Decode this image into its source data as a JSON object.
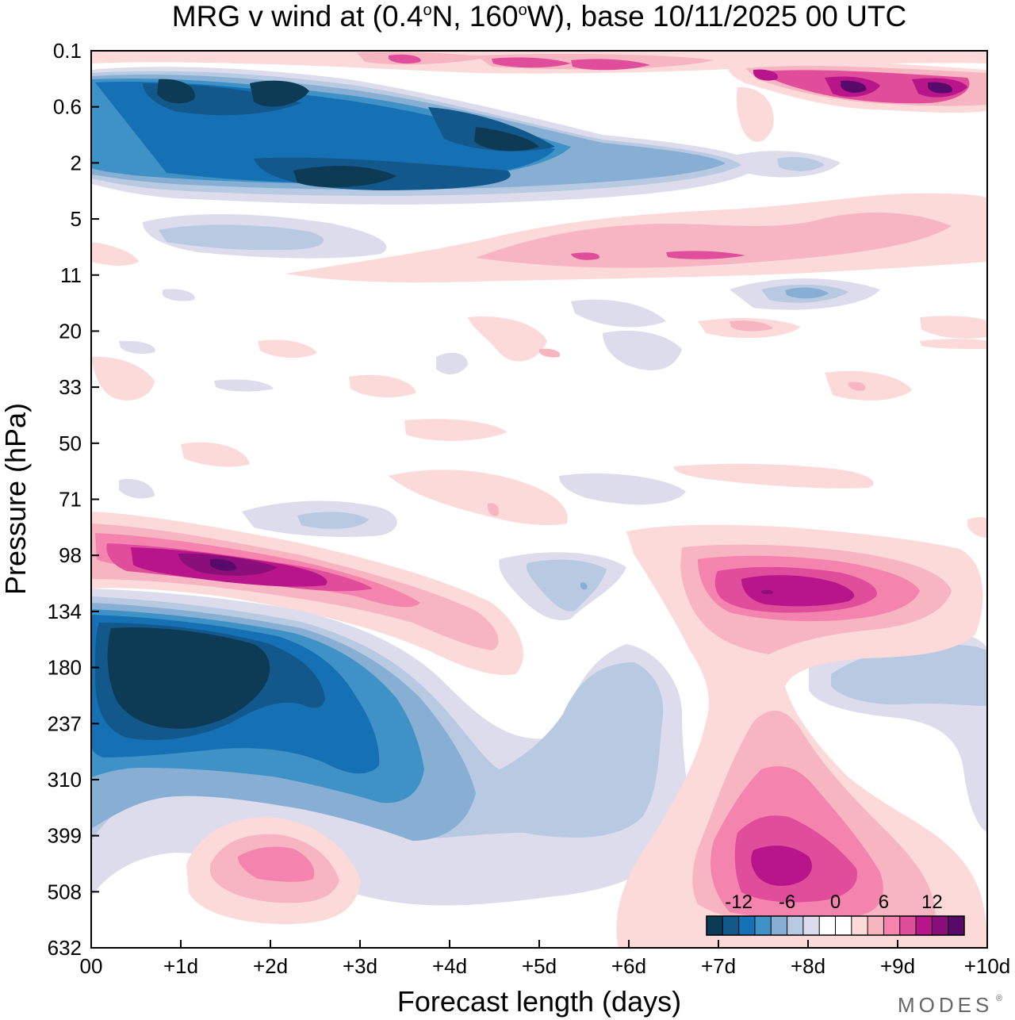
{
  "chart_data": {
    "type": "heatmap",
    "title": "MRG v wind at (0.4°N, 160°W),  base 10/11/2025  00 UTC",
    "title_parts": {
      "prefix": "MRG v wind at (0.4",
      "lat_unit": "o",
      "lat_hemi": "N, 160",
      "lon_unit": "o",
      "suffix": "W),  base 10/11/2025  00 UTC"
    },
    "xlabel": "Forecast length (days)",
    "ylabel": "Pressure (hPa)",
    "x_ticks": [
      "00",
      "+1d",
      "+2d",
      "+3d",
      "+4d",
      "+5d",
      "+6d",
      "+7d",
      "+8d",
      "+9d",
      "+10d"
    ],
    "xlim": [
      0,
      10
    ],
    "y_ticks": [
      "0.1",
      "0.6",
      "2",
      "5",
      "11",
      "20",
      "33",
      "50",
      "71",
      "98",
      "134",
      "180",
      "237",
      "310",
      "399",
      "508",
      "632"
    ],
    "y_scale": "log-pressure, top 0.1 hPa, bottom 632 hPa",
    "colorbar": {
      "labels": [
        "-12",
        "-6",
        "0",
        "6",
        "12"
      ],
      "label_levels": [
        -12,
        -6,
        0,
        6,
        12
      ],
      "levels": [
        -14,
        -12,
        -10,
        -8,
        -6,
        -4,
        -2,
        0,
        2,
        4,
        6,
        8,
        10,
        12,
        14
      ],
      "colors": [
        "#0d3b56",
        "#12588a",
        "#1570b4",
        "#3f92c6",
        "#86afd3",
        "#b8c9e2",
        "#dcdcec",
        "#ffffff",
        "#ffffff",
        "#fcdada",
        "#f7b5c1",
        "#f483ad",
        "#e04d9b",
        "#b8158a",
        "#8a0f7a",
        "#570a6a"
      ],
      "placement": "bottom-right, inside plot"
    },
    "features": [
      {
        "sign": "negative",
        "peak": -14,
        "day": 1.0,
        "pressure_hPa": 180,
        "description": "strong southward wind core, +0.2d to +2d, 134-310 hPa"
      },
      {
        "sign": "negative",
        "peak": -10,
        "day": 3.0,
        "pressure_hPa": 290,
        "description": "southward extension toward +3d"
      },
      {
        "sign": "positive",
        "peak": 14,
        "day": 1.5,
        "pressure_hPa": 100,
        "description": "northward wind core tilting down with time, 85-130 hPa"
      },
      {
        "sign": "positive",
        "peak": 12,
        "day": 7.5,
        "pressure_hPa": 120,
        "description": "northward wind maximum around +7.5d, 100-150 hPa"
      },
      {
        "sign": "positive",
        "peak": 12,
        "day": 7.7,
        "pressure_hPa": 460,
        "description": "northward wind maximum near surface layers +7d to +8.5d"
      },
      {
        "sign": "positive",
        "peak": 8,
        "day": 2.0,
        "pressure_hPa": 450,
        "description": "weaker northward patch near +2d"
      },
      {
        "sign": "negative",
        "peak": -6,
        "day": 9.0,
        "pressure_hPa": 190,
        "description": "weak southward wind +8.5d to +10d"
      },
      {
        "sign": "negative",
        "peak": -14,
        "day": 3.0,
        "pressure_hPa": 2.5,
        "description": "stratospheric southward band 0.3-4 hPa, +0d to +6d"
      },
      {
        "sign": "positive",
        "peak": 14,
        "day": 8.5,
        "pressure_hPa": 0.4,
        "description": "upper stratosphere northward winds after +7d"
      }
    ]
  },
  "branding": {
    "logo": "MODES",
    "logo_mark": "®"
  }
}
